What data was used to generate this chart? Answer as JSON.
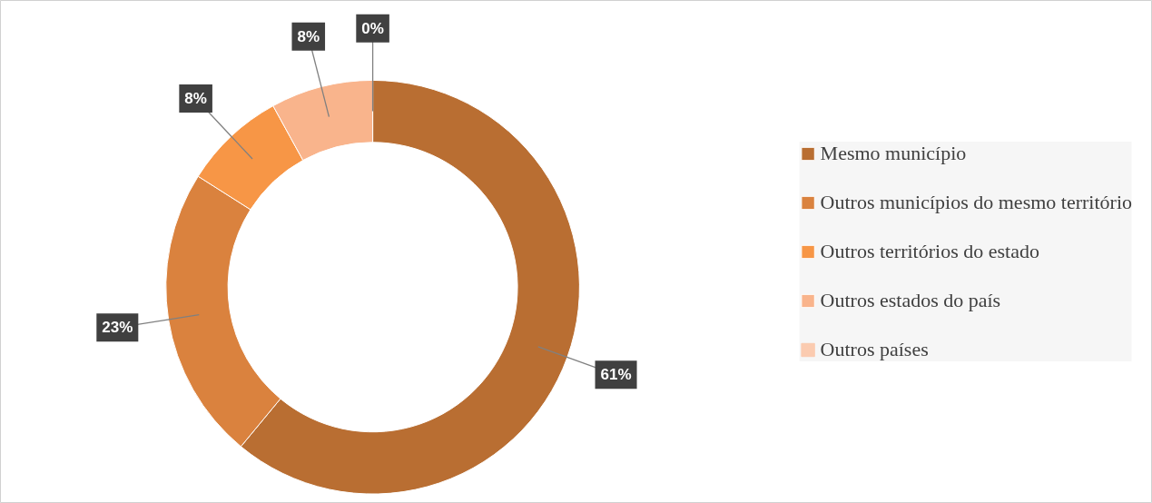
{
  "chart_data": {
    "type": "donut",
    "categories": [
      "Mesmo município",
      "Outros municípios do mesmo território",
      "Outros territórios do estado",
      "Outros estados do país",
      "Outros países"
    ],
    "values": [
      61,
      23,
      8,
      8,
      0
    ],
    "colors": [
      "#b96e32",
      "#da823e",
      "#f79646",
      "#f9b48c",
      "#fbcbb0"
    ],
    "value_labels": [
      "61%",
      "23%",
      "8%",
      "8%",
      "0%"
    ],
    "legend": "right"
  }
}
